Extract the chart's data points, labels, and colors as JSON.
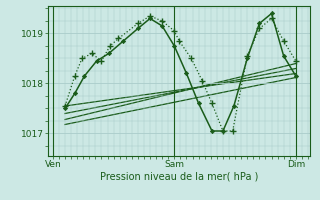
{
  "bg_color": "#cce8e4",
  "grid_color": "#aaccca",
  "line_color": "#1a5c1a",
  "text_color": "#1a5c1a",
  "ylabel_ticks": [
    1017,
    1018,
    1019
  ],
  "xlabel": "Pression niveau de la mer( hPa )",
  "xtick_labels": [
    "Ven",
    "Sam",
    "Dim"
  ],
  "xtick_positions": [
    0.0,
    0.5,
    1.0
  ],
  "ylim": [
    1016.55,
    1019.55
  ],
  "xlim": [
    -0.02,
    1.06
  ],
  "series_dotted": {
    "x": [
      0.05,
      0.09,
      0.12,
      0.16,
      0.2,
      0.235,
      0.27,
      0.35,
      0.4,
      0.45,
      0.5,
      0.52,
      0.57,
      0.615,
      0.655,
      0.7,
      0.74,
      0.8,
      0.85,
      0.9,
      0.95,
      1.0
    ],
    "y": [
      1017.55,
      1018.15,
      1018.5,
      1018.6,
      1018.45,
      1018.75,
      1018.9,
      1019.2,
      1019.35,
      1019.25,
      1019.05,
      1018.85,
      1018.5,
      1018.05,
      1017.6,
      1017.05,
      1017.05,
      1018.55,
      1019.1,
      1019.3,
      1018.85,
      1018.45
    ]
  },
  "series_solid": {
    "x": [
      0.05,
      0.09,
      0.13,
      0.18,
      0.23,
      0.29,
      0.35,
      0.4,
      0.45,
      0.5,
      0.55,
      0.6,
      0.655,
      0.7,
      0.745,
      0.8,
      0.85,
      0.9,
      0.95,
      1.0
    ],
    "y": [
      1017.5,
      1017.8,
      1018.15,
      1018.45,
      1018.6,
      1018.85,
      1019.1,
      1019.3,
      1019.15,
      1018.75,
      1018.2,
      1017.6,
      1017.05,
      1017.05,
      1017.55,
      1018.5,
      1019.2,
      1019.4,
      1018.55,
      1018.15
    ]
  },
  "trend_lines": [
    {
      "x": [
        0.05,
        1.0
      ],
      "y": [
        1017.55,
        1018.2
      ]
    },
    {
      "x": [
        0.05,
        1.0
      ],
      "y": [
        1017.4,
        1018.3
      ]
    },
    {
      "x": [
        0.05,
        1.0
      ],
      "y": [
        1017.28,
        1018.4
      ]
    },
    {
      "x": [
        0.05,
        1.0
      ],
      "y": [
        1017.18,
        1018.12
      ]
    }
  ]
}
